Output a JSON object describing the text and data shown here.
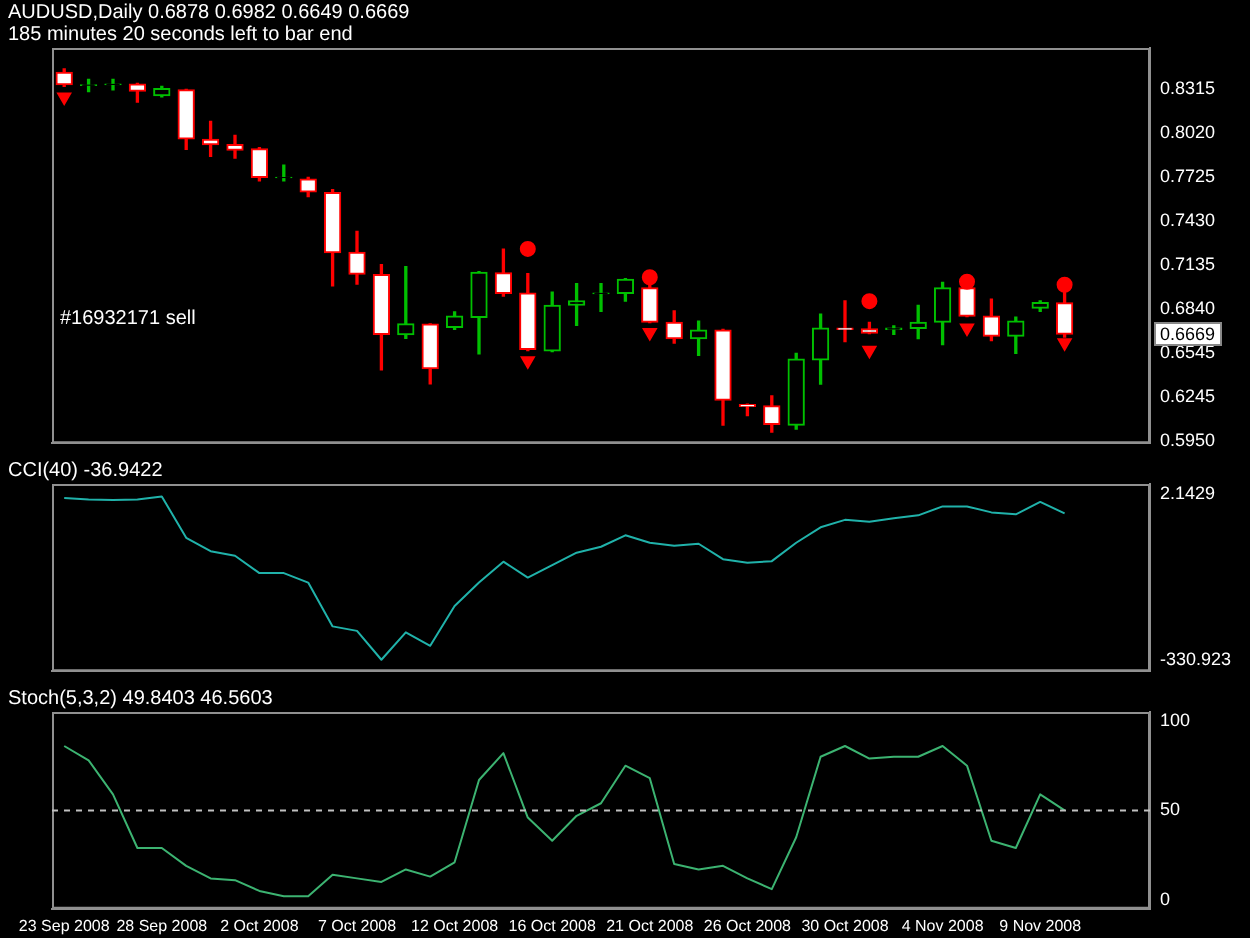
{
  "chart_data": [
    {
      "type": "candlestick",
      "title": "AUDUSD,Daily  0.6878 0.6982 0.6649 0.6669",
      "subtitle": "185 minutes 20 seconds left to bar end",
      "categories": [
        null,
        null,
        null,
        null,
        null,
        null,
        null,
        null,
        null,
        null,
        null,
        null,
        null,
        null,
        null,
        null,
        null,
        null,
        null,
        null,
        null,
        null,
        null,
        null,
        null,
        null,
        null,
        null,
        null,
        null,
        null,
        null,
        null,
        null,
        null,
        null,
        null,
        null,
        null,
        null,
        null,
        null,
        null,
        null,
        null
      ],
      "ohlc": [
        [
          0.8424,
          0.8448,
          0.833,
          0.8342
        ],
        [
          0.8338,
          0.8377,
          0.8295,
          0.834
        ],
        [
          0.8343,
          0.8377,
          0.8307,
          0.8345
        ],
        [
          0.8345,
          0.835,
          0.8225,
          0.8299
        ],
        [
          0.8268,
          0.833,
          0.826,
          0.8315
        ],
        [
          0.8307,
          0.831,
          0.7908,
          0.7978
        ],
        [
          0.7975,
          0.8096,
          0.7861,
          0.794
        ],
        [
          0.794,
          0.8002,
          0.7849,
          0.7904
        ],
        [
          0.7911,
          0.792,
          0.7697,
          0.772
        ],
        [
          0.7718,
          0.7802,
          0.7697,
          0.772
        ],
        [
          0.7709,
          0.772,
          0.7591,
          0.7623
        ],
        [
          0.7618,
          0.7638,
          0.6993,
          0.7216
        ],
        [
          0.7216,
          0.7357,
          0.7005,
          0.7072
        ],
        [
          0.7067,
          0.7134,
          0.6429,
          0.6668
        ],
        [
          0.6665,
          0.7122,
          0.6641,
          0.6738
        ],
        [
          0.6735,
          0.6738,
          0.6336,
          0.6438
        ],
        [
          0.6715,
          0.6817,
          0.67,
          0.679
        ],
        [
          0.6782,
          0.7087,
          0.6536,
          0.7083
        ],
        [
          0.7079,
          0.7239,
          0.6923,
          0.6943
        ],
        [
          0.6943,
          0.7075,
          0.6559,
          0.6567
        ],
        [
          0.6556,
          0.695,
          0.6552,
          0.6861
        ],
        [
          0.6864,
          0.7008,
          0.6727,
          0.6891
        ],
        [
          0.6941,
          0.7008,
          0.6821,
          0.6943
        ],
        [
          0.6943,
          0.704,
          0.6891,
          0.7036
        ],
        [
          0.6978,
          0.7005,
          0.6746,
          0.675
        ],
        [
          0.6747,
          0.6825,
          0.6609,
          0.6638
        ],
        [
          0.6638,
          0.6755,
          0.6527,
          0.6696
        ],
        [
          0.6696,
          0.67,
          0.6058,
          0.6227
        ],
        [
          0.6195,
          0.6199,
          0.6122,
          0.6184
        ],
        [
          0.6187,
          0.6254,
          0.6011,
          0.6063
        ],
        [
          0.6058,
          0.6539,
          0.6031,
          0.65
        ],
        [
          0.6497,
          0.6802,
          0.6333,
          0.6708
        ],
        [
          0.6708,
          0.6891,
          0.6618,
          0.67
        ],
        [
          0.6703,
          0.6747,
          0.6672,
          0.6676
        ],
        [
          0.67,
          0.6723,
          0.6668,
          0.6708
        ],
        [
          0.6708,
          0.6861,
          0.6638,
          0.6747
        ],
        [
          0.675,
          0.7016,
          0.6598,
          0.6978
        ],
        [
          0.6978,
          0.6981,
          0.6786,
          0.679
        ],
        [
          0.679,
          0.6903,
          0.6626,
          0.6656
        ],
        [
          0.6656,
          0.6782,
          0.6539,
          0.6755
        ],
        [
          0.6844,
          0.6891,
          0.6821,
          0.6879
        ],
        [
          0.6878,
          0.6982,
          0.6649,
          0.6669
        ],
        null,
        null,
        null
      ],
      "colors": [
        "#ff0000",
        "#00c000",
        "#00c000",
        "#ff0000",
        "#00c000",
        "#ff0000",
        "#ff0000",
        "#ff0000",
        "#ff0000",
        "#00c000",
        "#ff0000",
        "#ff0000",
        "#ff0000",
        "#ff0000",
        "#00c000",
        "#ff0000",
        "#00c000",
        "#00c000",
        "#ff0000",
        "#ff0000",
        "#00c000",
        "#00c000",
        "#00c000",
        "#00c000",
        "#ff0000",
        "#ff0000",
        "#00c000",
        "#ff0000",
        "#ff0000",
        "#ff0000",
        "#00c000",
        "#00c000",
        "#ff0000",
        "#ff0000",
        "#00c000",
        "#00c000",
        "#00c000",
        "#ff0000",
        "#ff0000",
        "#00c000",
        "#00c000",
        "#ff0000",
        null,
        null,
        null
      ],
      "series": [
        {
          "type": "scatter",
          "marker": "circle",
          "color": "#ff0000",
          "values": [
            null,
            null,
            null,
            null,
            null,
            null,
            null,
            null,
            null,
            null,
            null,
            null,
            null,
            null,
            null,
            null,
            null,
            null,
            null,
            0.724,
            null,
            null,
            null,
            null,
            0.705,
            null,
            null,
            null,
            null,
            null,
            null,
            null,
            null,
            0.689,
            null,
            null,
            null,
            0.702,
            null,
            null,
            null,
            0.7,
            null,
            null,
            null
          ]
        },
        {
          "type": "scatter",
          "marker": "triangle",
          "color": "#ff0000",
          "values": [
            0.826,
            null,
            null,
            null,
            null,
            null,
            null,
            null,
            null,
            null,
            null,
            null,
            null,
            null,
            null,
            null,
            null,
            null,
            null,
            0.649,
            null,
            null,
            null,
            null,
            0.668,
            null,
            null,
            null,
            null,
            null,
            null,
            null,
            null,
            0.656,
            null,
            null,
            null,
            0.671,
            null,
            null,
            null,
            0.661,
            null,
            null,
            null
          ]
        }
      ],
      "ylim": [
        0.5937,
        0.8588
      ],
      "yticks": [
        {
          "value": 0.595,
          "label": "0.5950"
        },
        {
          "value": 0.6245,
          "label": "0.6245"
        },
        {
          "value": 0.6545,
          "label": "0.6545"
        },
        {
          "value": 0.684,
          "label": "0.6840"
        },
        {
          "value": 0.7135,
          "label": "0.7135"
        },
        {
          "value": 0.743,
          "label": "0.7430"
        },
        {
          "value": 0.7725,
          "label": "0.7725"
        },
        {
          "value": 0.802,
          "label": "0.8020"
        },
        {
          "value": 0.8315,
          "label": "0.8315"
        }
      ],
      "annotations": [
        "#16932171 sell",
        {
          "text": "0.6669",
          "y": 0.6669
        }
      ],
      "tick_labels": "y"
    },
    {
      "type": "line",
      "title": "CCI(40) -36.9422",
      "categories": [
        null,
        null,
        null,
        null,
        null,
        null,
        null,
        null,
        null,
        null,
        null,
        null,
        null,
        null,
        null,
        null,
        null,
        null,
        null,
        null,
        null,
        null,
        null,
        null,
        null,
        null,
        null,
        null,
        null,
        null,
        null,
        null,
        null,
        null,
        null,
        null,
        null,
        null,
        null,
        null,
        null,
        null,
        null,
        null,
        null
      ],
      "series": [
        {
          "color": "#20b2aa",
          "values": [
            -6,
            -9,
            -10,
            -9,
            -3,
            -86,
            -113,
            -122,
            -157,
            -157,
            -176,
            -264,
            -273,
            -331,
            -276,
            -303,
            -223,
            -176,
            -134,
            -166,
            -141,
            -116,
            -104,
            -81,
            -96,
            -102,
            -98,
            -129,
            -136,
            -133,
            -96,
            -65,
            -50,
            -54,
            -47,
            -41,
            -23,
            -23,
            -35,
            -39,
            -14,
            -37,
            null,
            null,
            null
          ]
        }
      ],
      "ylim": [
        -354,
        22
      ],
      "yticks": [
        -330.923,
        2.1429
      ],
      "tick_labels": "y"
    },
    {
      "type": "line",
      "title": "Stoch(5,3,2) 49.8403 46.5603",
      "categories": [
        "23 Sep 2008",
        null,
        null,
        null,
        "28 Sep 2008",
        null,
        null,
        null,
        "2 Oct 2008",
        null,
        null,
        null,
        "7 Oct 2008",
        null,
        null,
        null,
        "12 Oct 2008",
        null,
        null,
        null,
        "16 Oct 2008",
        null,
        null,
        null,
        "21 Oct 2008",
        null,
        null,
        null,
        "26 Oct 2008",
        null,
        null,
        null,
        "30 Oct 2008",
        null,
        null,
        null,
        "4 Nov 2008",
        null,
        null,
        null,
        "9 Nov 2008",
        null,
        null,
        null,
        null
      ],
      "series": [
        {
          "color": "#3cb371",
          "values": [
            86,
            78,
            59,
            29,
            29,
            19,
            12,
            11,
            5,
            2,
            2,
            14,
            12,
            10,
            17,
            13,
            21,
            67,
            82,
            46,
            33,
            47,
            54,
            75,
            68,
            20,
            17,
            19,
            12,
            6,
            35,
            80,
            86,
            79,
            80,
            80,
            86,
            75,
            33,
            29,
            59,
            50,
            null,
            null,
            null
          ]
        }
      ],
      "ylim": [
        -5,
        105
      ],
      "yticks": [
        0,
        50,
        100
      ],
      "ref_lines": [
        {
          "axis": "y",
          "value": 50,
          "color": "#c0c0c0",
          "line_style": "dashed"
        }
      ]
    }
  ]
}
